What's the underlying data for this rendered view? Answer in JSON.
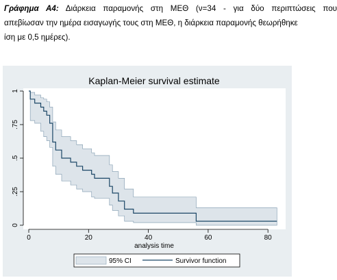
{
  "caption": {
    "label": "Γράφημα Α4:",
    "line1": "Διάρκεια παραμονής στη ΜΕΘ (ν=34 - για δύο περιπτώσεις που",
    "line2": "απεβίωσαν την ημέρα εισαγωγής τους στη ΜΕΘ, η διάρκεια παραμονής θεωρήθηκε",
    "line3": "ίση με 0,5 ημέρες)."
  },
  "colors": {
    "background": "#e9eef1",
    "plot_area": "#ffffff",
    "ci_fill": "#dde4ea",
    "ci_stroke": "#8ba3b6",
    "survival_line": "#1b4666"
  },
  "chart_data": {
    "type": "line",
    "title": "Kaplan-Meier survival estimate",
    "xlabel": "analysis time",
    "ylabel": "",
    "xlim": [
      0,
      85
    ],
    "ylim": [
      0,
      1
    ],
    "x_ticks": [
      0,
      20,
      40,
      60,
      80
    ],
    "x_tick_labels": [
      "0",
      "20",
      "40",
      "60",
      "80"
    ],
    "y_ticks": [
      0,
      0.25,
      0.5,
      0.75,
      1
    ],
    "y_tick_labels": [
      "0",
      ".25",
      ".5",
      ".75",
      "1"
    ],
    "grid": false,
    "legend_position": "bottom",
    "step": true,
    "series": [
      {
        "name": "Survivor function",
        "x": [
          0,
          0.5,
          1,
          2,
          4,
          5,
          6,
          7,
          8,
          9,
          10,
          11,
          12,
          14,
          16,
          18,
          21,
          22,
          24,
          27,
          28,
          30,
          32,
          35,
          56,
          70,
          83
        ],
        "y": [
          1,
          0.94,
          0.94,
          0.91,
          0.88,
          0.85,
          0.82,
          0.76,
          0.62,
          0.56,
          0.56,
          0.5,
          0.5,
          0.47,
          0.44,
          0.41,
          0.38,
          0.35,
          0.35,
          0.29,
          0.24,
          0.18,
          0.12,
          0.09,
          0.03,
          0.03,
          0.03
        ]
      },
      {
        "name": "95% CI",
        "role": "band",
        "x": [
          0,
          0.5,
          1,
          2,
          4,
          5,
          6,
          7,
          8,
          9,
          10,
          11,
          12,
          14,
          16,
          18,
          21,
          22,
          24,
          27,
          28,
          30,
          32,
          35,
          56,
          70,
          83
        ],
        "upper": [
          1,
          0.99,
          0.99,
          0.97,
          0.95,
          0.94,
          0.92,
          0.88,
          0.77,
          0.71,
          0.71,
          0.66,
          0.66,
          0.63,
          0.6,
          0.57,
          0.54,
          0.52,
          0.52,
          0.45,
          0.4,
          0.35,
          0.27,
          0.21,
          0.13,
          0.13,
          0.13
        ],
        "lower": [
          1,
          0.78,
          0.78,
          0.76,
          0.7,
          0.66,
          0.63,
          0.58,
          0.44,
          0.38,
          0.38,
          0.33,
          0.33,
          0.3,
          0.27,
          0.25,
          0.21,
          0.2,
          0.2,
          0.15,
          0.11,
          0.07,
          0.03,
          0.02,
          0.0,
          0.0,
          0.0
        ]
      }
    ],
    "legend": [
      {
        "label": "95% CI",
        "kind": "band"
      },
      {
        "label": "Survivor function",
        "kind": "line"
      }
    ]
  }
}
